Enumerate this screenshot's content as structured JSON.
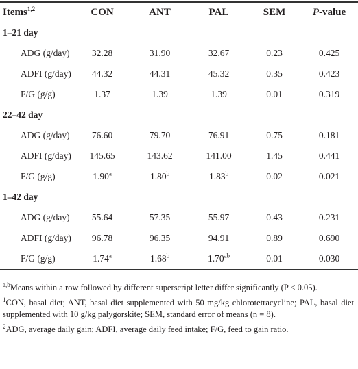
{
  "header": {
    "items": "Items",
    "items_sup": "1,2",
    "columns": [
      "CON",
      "ANT",
      "PAL",
      "SEM"
    ],
    "p_italic": "P",
    "p_rest": "-value"
  },
  "sections": [
    {
      "title": "1–21 day",
      "rows": [
        {
          "label": "ADG (g/day)",
          "cells": [
            "32.28",
            "31.90",
            "32.67",
            "0.23",
            "0.425"
          ]
        },
        {
          "label": "ADFI (g/day)",
          "cells": [
            "44.32",
            "44.31",
            "45.32",
            "0.35",
            "0.423"
          ]
        },
        {
          "label": "F/G (g/g)",
          "cells": [
            "1.37",
            "1.39",
            "1.39",
            "0.01",
            "0.319"
          ]
        }
      ]
    },
    {
      "title": "22–42 day",
      "rows": [
        {
          "label": "ADG (g/day)",
          "cells": [
            "76.60",
            "79.70",
            "76.91",
            "0.75",
            "0.181"
          ]
        },
        {
          "label": "ADFI (g/day)",
          "cells": [
            "145.65",
            "143.62",
            "141.00",
            "1.45",
            "0.441"
          ]
        },
        {
          "label": "F/G (g/g)",
          "cells": [
            {
              "value": "1.90",
              "sup": "a"
            },
            {
              "value": "1.80",
              "sup": "b"
            },
            {
              "value": "1.83",
              "sup": "b"
            },
            "0.02",
            "0.021"
          ]
        }
      ]
    },
    {
      "title": "1–42 day",
      "rows": [
        {
          "label": "ADG (g/day)",
          "cells": [
            "55.64",
            "57.35",
            "55.97",
            "0.43",
            "0.231"
          ]
        },
        {
          "label": "ADFI (g/day)",
          "cells": [
            "96.78",
            "96.35",
            "94.91",
            "0.89",
            "0.690"
          ]
        },
        {
          "label": "F/G (g/g)",
          "cells": [
            {
              "value": "1.74",
              "sup": "a"
            },
            {
              "value": "1.68",
              "sup": "b"
            },
            {
              "value": "1.70",
              "sup": "ab"
            },
            "0.01",
            "0.030"
          ]
        }
      ]
    }
  ],
  "footnotes": [
    {
      "sup": "a,b",
      "text": "Means within a row followed by different superscript letter differ significantly (P < 0.05)."
    },
    {
      "sup": "1",
      "text": "CON, basal diet; ANT, basal diet supplemented with 50 mg/kg chlorotetracycline; PAL, basal diet supplemented with 10 g/kg palygorskite; SEM, standard error of means (n = 8)."
    },
    {
      "sup": "2",
      "text": "ADG, average daily gain; ADFI, average daily feed intake; F/G, feed to gain ratio."
    }
  ]
}
